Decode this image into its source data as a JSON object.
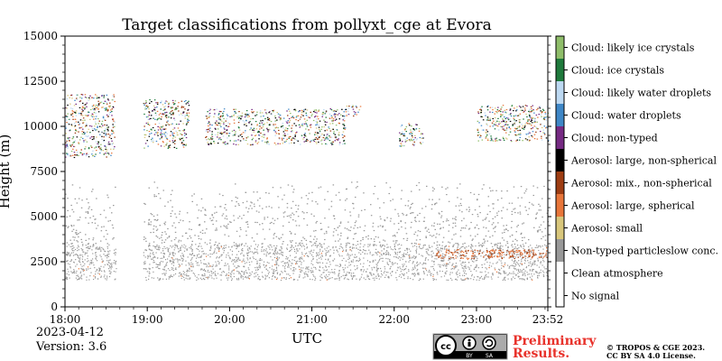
{
  "chart_data": {
    "type": "heatmap",
    "title": "Target classifications from pollyxt_cge at Evora",
    "xlabel": "UTC",
    "ylabel": "Height (m)",
    "x_range_hours": [
      18.0,
      23.8667
    ],
    "ylim": [
      0,
      15000
    ],
    "x_ticks": [
      "18:00",
      "19:00",
      "20:00",
      "21:00",
      "22:00",
      "23:00",
      "23:52"
    ],
    "y_ticks": [
      "0",
      "2500",
      "5000",
      "7500",
      "10000",
      "12500",
      "15000"
    ],
    "y_tick_values": [
      0,
      2500,
      5000,
      7500,
      10000,
      12500,
      15000
    ],
    "x_tick_values": [
      18,
      19,
      20,
      21,
      22,
      23,
      23.8667
    ],
    "classes": [
      {
        "label": "Cloud: likely ice crystals",
        "color": "#8fbe6a"
      },
      {
        "label": "Cloud: ice crystals",
        "color": "#1f7a3c"
      },
      {
        "label": "Cloud: likely water droplets",
        "color": "#bdd9f2"
      },
      {
        "label": "Cloud: water droplets",
        "color": "#3f87c7"
      },
      {
        "label": "Cloud: non-typed",
        "color": "#762a83"
      },
      {
        "label": "Aerosol: large, non-spherical",
        "color": "#000000"
      },
      {
        "label": "Aerosol: mix., non-spherical",
        "color": "#9e3d12"
      },
      {
        "label": "Aerosol: large, spherical",
        "color": "#e8763a"
      },
      {
        "label": "Aerosol: small",
        "color": "#d9c77c"
      },
      {
        "label": "Non-typed particleslow conc.",
        "color": "#999999"
      },
      {
        "label": "Clean atmosphere",
        "color": "#ffffff"
      },
      {
        "label": "No signal",
        "color": "#ffffff"
      }
    ],
    "features": [
      {
        "name": "aerosol-layer",
        "class": "Non-typed particleslow conc.",
        "x_start": 18.0,
        "x_end": 23.8667,
        "y_base_m": 1500,
        "y_top_m": 3500
      },
      {
        "name": "aerosol-sparse",
        "class": "Non-typed particleslow conc.",
        "x_start": 18.0,
        "x_end": 23.8667,
        "y_base_m": 3500,
        "y_top_m": 7000
      },
      {
        "name": "orange-aerosol-line",
        "class": "Aerosol: large, spherical",
        "x_start": 22.5,
        "x_end": 23.8667,
        "y_base_m": 2700,
        "y_top_m": 3200
      },
      {
        "name": "cloud-early",
        "class": "Cloud: non-typed",
        "x_start": 18.0,
        "x_end": 18.6,
        "y_base_m": 8300,
        "y_top_m": 11800
      },
      {
        "name": "cloud-mid",
        "class": "Cloud: water droplets",
        "x_start": 18.95,
        "x_end": 19.5,
        "y_base_m": 8800,
        "y_top_m": 11500
      },
      {
        "name": "cloud-main",
        "class": "Aerosol: large, spherical",
        "x_start": 19.7,
        "x_end": 21.4,
        "y_base_m": 9000,
        "y_top_m": 11000
      },
      {
        "name": "cloud-late-small",
        "class": "Cloud: non-typed",
        "x_start": 21.4,
        "x_end": 21.6,
        "y_base_m": 10600,
        "y_top_m": 11200
      },
      {
        "name": "cloud-2215",
        "class": "Cloud: water droplets",
        "x_start": 22.05,
        "x_end": 22.35,
        "y_base_m": 8900,
        "y_top_m": 10200
      },
      {
        "name": "cloud-end",
        "class": "Cloud: ice crystals",
        "x_start": 23.0,
        "x_end": 23.8667,
        "y_base_m": 9200,
        "y_top_m": 11200
      }
    ]
  },
  "footer": {
    "date": "2023-04-12",
    "version": "Version: 3.6",
    "preliminary_line1": "Preliminary",
    "preliminary_line2": "Results.",
    "copyright_line1": "© TROPOS & CGE 2023.",
    "copyright_line2": "CC BY SA 4.0 License."
  },
  "license_badge": {
    "by": "BY",
    "sa": "SA"
  }
}
